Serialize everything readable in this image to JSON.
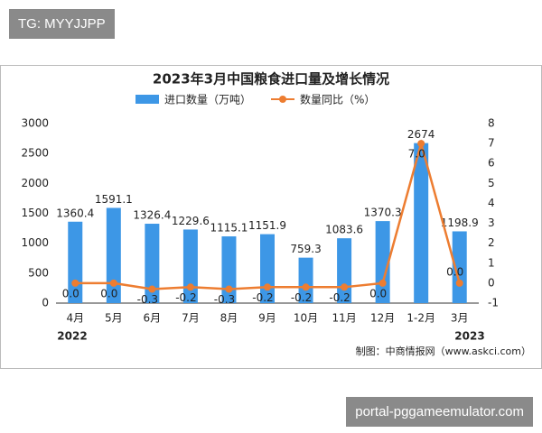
{
  "overlay": {
    "tag": "TG: MYYJJPP",
    "site": "portal-pggameemulator.com"
  },
  "chart_data": {
    "type": "bar-line",
    "title": "2023年3月中国粮食进口量及增长情况",
    "categories": [
      "4月",
      "5月",
      "6月",
      "7月",
      "8月",
      "9月",
      "10月",
      "11月",
      "12月",
      "1-2月",
      "3月"
    ],
    "series": [
      {
        "name": "进口数量（万吨）",
        "type": "bar",
        "color": "#3d97e6",
        "values": [
          1360.4,
          1591.1,
          1326.4,
          1229.6,
          1115.1,
          1151.9,
          759.3,
          1083.6,
          1370.3,
          2674,
          1198.9
        ]
      },
      {
        "name": "数量同比（%）",
        "type": "line",
        "axis": "y2",
        "color": "#ed7d31",
        "values": [
          0,
          0,
          -0.3,
          -0.2,
          -0.3,
          -0.2,
          -0.2,
          -0.2,
          0,
          7,
          0
        ],
        "value_labels": [
          "0.0",
          "0.0",
          "-0.3",
          "-0.2",
          "-0.3",
          "-0.2",
          "-0.2",
          "-0.2",
          "0.0",
          "7.0",
          "0.0"
        ]
      }
    ],
    "ylim": [
      0,
      3000
    ],
    "yticks": [
      0,
      500,
      1000,
      1500,
      2000,
      2500,
      3000
    ],
    "y2lim": [
      -1,
      8
    ],
    "y2ticks": [
      -1,
      0,
      1,
      2,
      3,
      4,
      5,
      6,
      7,
      8
    ],
    "annotations": {
      "start_year": "2022",
      "end_year": "2023"
    },
    "source": "制图：中商情报网（www.askci.com）"
  }
}
